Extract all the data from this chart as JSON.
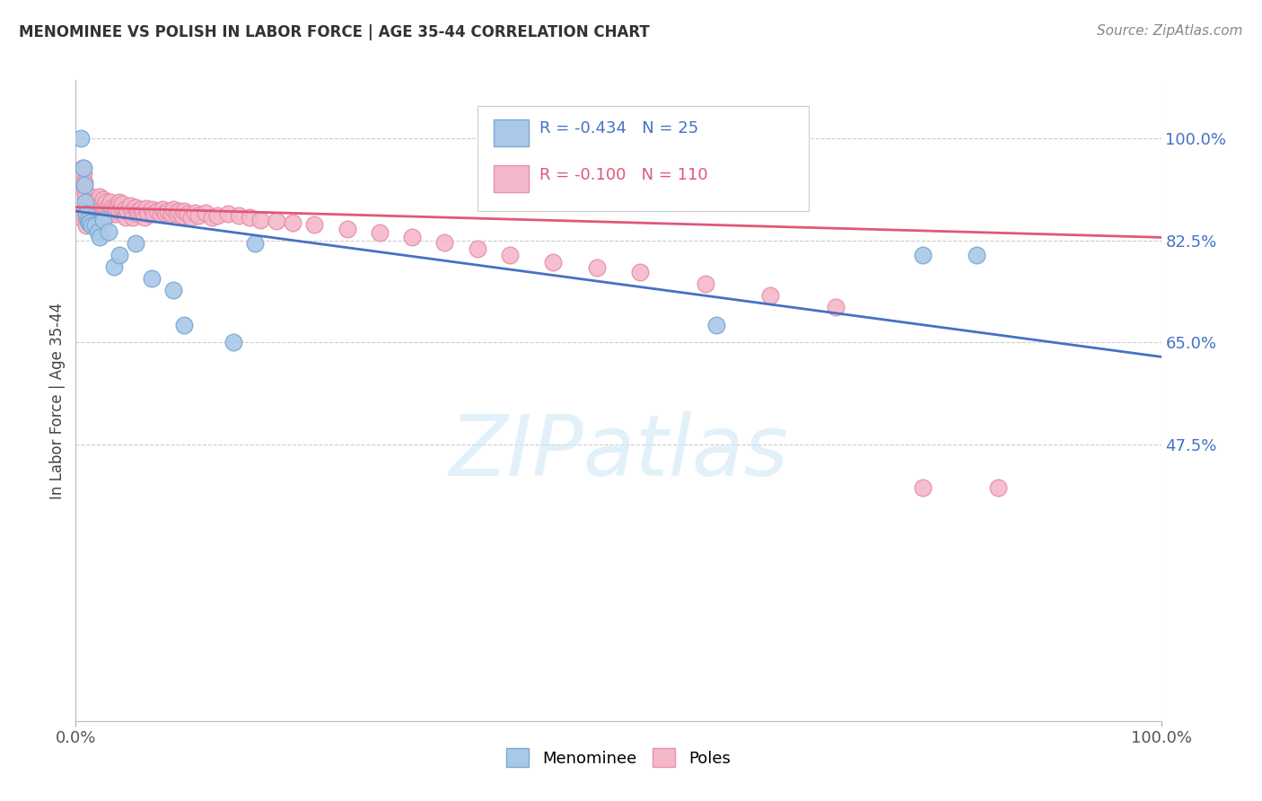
{
  "title": "MENOMINEE VS POLISH IN LABOR FORCE | AGE 35-44 CORRELATION CHART",
  "source": "Source: ZipAtlas.com",
  "ylabel": "In Labor Force | Age 35-44",
  "xlim": [
    0.0,
    1.0
  ],
  "ylim": [
    0.0,
    1.1
  ],
  "ytick_labels": [
    "100.0%",
    "82.5%",
    "65.0%",
    "47.5%"
  ],
  "ytick_vals": [
    1.0,
    0.825,
    0.65,
    0.475
  ],
  "xtick_labels": [
    "0.0%",
    "100.0%"
  ],
  "xtick_vals": [
    0.0,
    1.0
  ],
  "menominee_color": "#aac8e8",
  "poles_color": "#f4b8cb",
  "menominee_edge": "#7aaad4",
  "poles_edge": "#e890a8",
  "trend_blue": "#4472c4",
  "trend_pink": "#e05878",
  "label_blue": "#4472c4",
  "R_menominee": "-0.434",
  "N_menominee": "25",
  "R_poles": "-0.100",
  "N_poles": "110",
  "background_color": "#ffffff",
  "grid_color": "#cccccc",
  "menominee_x": [
    0.005,
    0.007,
    0.008,
    0.009,
    0.01,
    0.011,
    0.012,
    0.013,
    0.015,
    0.018,
    0.02,
    0.022,
    0.025,
    0.03,
    0.035,
    0.04,
    0.055,
    0.07,
    0.09,
    0.1,
    0.145,
    0.165,
    0.59,
    0.78,
    0.83
  ],
  "menominee_y": [
    1.0,
    0.95,
    0.92,
    0.89,
    0.87,
    0.86,
    0.855,
    0.855,
    0.85,
    0.85,
    0.84,
    0.83,
    0.86,
    0.84,
    0.78,
    0.8,
    0.82,
    0.76,
    0.74,
    0.68,
    0.65,
    0.82,
    0.68,
    0.8,
    0.8
  ],
  "poles_x": [
    0.004,
    0.005,
    0.006,
    0.007,
    0.008,
    0.008,
    0.009,
    0.009,
    0.01,
    0.01,
    0.01,
    0.011,
    0.011,
    0.012,
    0.012,
    0.013,
    0.013,
    0.014,
    0.015,
    0.015,
    0.015,
    0.016,
    0.016,
    0.017,
    0.017,
    0.018,
    0.018,
    0.019,
    0.02,
    0.02,
    0.02,
    0.021,
    0.022,
    0.022,
    0.023,
    0.024,
    0.025,
    0.025,
    0.026,
    0.027,
    0.028,
    0.029,
    0.03,
    0.03,
    0.032,
    0.033,
    0.034,
    0.035,
    0.036,
    0.037,
    0.038,
    0.04,
    0.04,
    0.042,
    0.043,
    0.045,
    0.046,
    0.048,
    0.05,
    0.052,
    0.053,
    0.055,
    0.057,
    0.058,
    0.06,
    0.062,
    0.063,
    0.065,
    0.067,
    0.07,
    0.072,
    0.075,
    0.078,
    0.08,
    0.082,
    0.085,
    0.088,
    0.09,
    0.093,
    0.095,
    0.098,
    0.1,
    0.103,
    0.106,
    0.11,
    0.113,
    0.12,
    0.125,
    0.13,
    0.14,
    0.15,
    0.16,
    0.17,
    0.185,
    0.2,
    0.22,
    0.25,
    0.28,
    0.31,
    0.34,
    0.37,
    0.4,
    0.44,
    0.48,
    0.52,
    0.58,
    0.64,
    0.7,
    0.78,
    0.85
  ],
  "poles_y": [
    0.87,
    0.865,
    0.95,
    0.94,
    0.925,
    0.91,
    0.9,
    0.88,
    0.87,
    0.86,
    0.85,
    0.88,
    0.865,
    0.89,
    0.875,
    0.885,
    0.87,
    0.895,
    0.9,
    0.89,
    0.875,
    0.87,
    0.86,
    0.88,
    0.865,
    0.89,
    0.875,
    0.87,
    0.895,
    0.885,
    0.87,
    0.875,
    0.9,
    0.885,
    0.87,
    0.88,
    0.895,
    0.88,
    0.87,
    0.88,
    0.89,
    0.875,
    0.885,
    0.87,
    0.89,
    0.875,
    0.882,
    0.87,
    0.88,
    0.87,
    0.878,
    0.89,
    0.875,
    0.882,
    0.888,
    0.878,
    0.865,
    0.875,
    0.885,
    0.875,
    0.865,
    0.882,
    0.87,
    0.875,
    0.878,
    0.872,
    0.865,
    0.88,
    0.87,
    0.878,
    0.87,
    0.875,
    0.87,
    0.878,
    0.872,
    0.875,
    0.87,
    0.878,
    0.87,
    0.875,
    0.868,
    0.875,
    0.87,
    0.865,
    0.872,
    0.868,
    0.872,
    0.865,
    0.868,
    0.87,
    0.868,
    0.865,
    0.86,
    0.858,
    0.855,
    0.852,
    0.845,
    0.838,
    0.83,
    0.822,
    0.81,
    0.8,
    0.788,
    0.778,
    0.77,
    0.75,
    0.73,
    0.71,
    0.4,
    0.4
  ],
  "men_trend_x0": 0.0,
  "men_trend_y0": 0.875,
  "men_trend_x1": 1.0,
  "men_trend_y1": 0.625,
  "pol_trend_x0": 0.0,
  "pol_trend_y0": 0.882,
  "pol_trend_x1": 1.0,
  "pol_trend_y1": 0.83,
  "watermark_text": "ZIPatlas",
  "watermark_color": "#d0e8f5",
  "legend_label_menominee": "Menominee",
  "legend_label_poles": "Poles"
}
